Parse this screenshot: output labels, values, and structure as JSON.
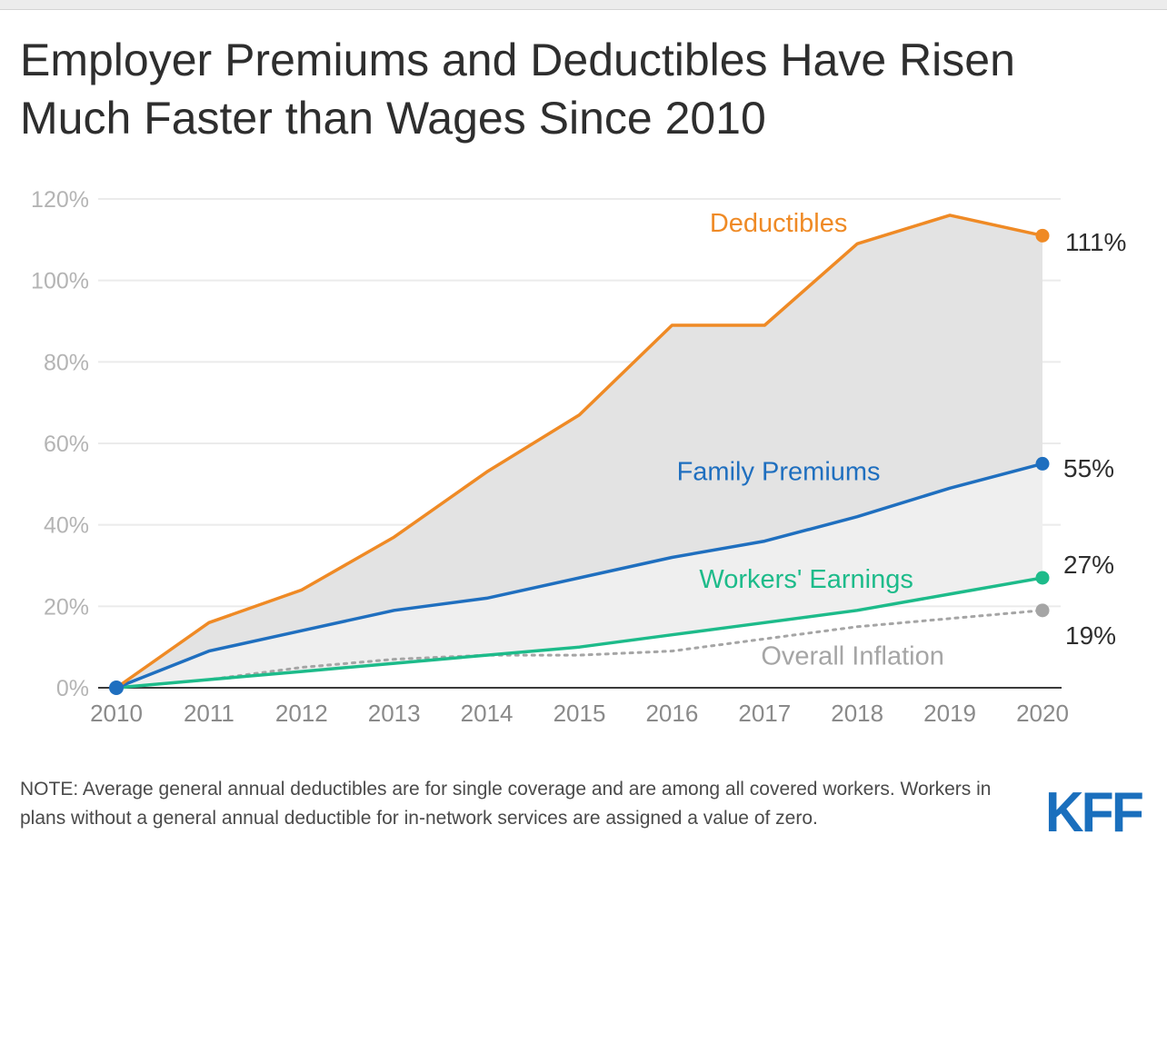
{
  "title_line1": "Employer Premiums and Deductibles Have Risen",
  "title_line2": "Much Faster than Wages Since 2010",
  "note": "NOTE: Average general annual deductibles are for single coverage and are among all covered workers. Workers in plans without a general annual deductible for in-network services are assigned a value of zero.",
  "logo": "KFF",
  "chart_data": {
    "type": "line",
    "x": [
      2010,
      2011,
      2012,
      2013,
      2014,
      2015,
      2016,
      2017,
      2018,
      2019,
      2020
    ],
    "xticks": [
      "2010",
      "2011",
      "2012",
      "2013",
      "2014",
      "2015",
      "2016",
      "2017",
      "2018",
      "2019",
      "2020"
    ],
    "ylim": [
      0,
      120
    ],
    "yticks": [
      "0%",
      "20%",
      "40%",
      "60%",
      "80%",
      "100%",
      "120%"
    ],
    "ytick_values": [
      0,
      20,
      40,
      60,
      80,
      100,
      120
    ],
    "series": [
      {
        "name": "Deductibles",
        "color": "#ef8a25",
        "dashed": false,
        "end_label": "111%",
        "values": [
          0,
          16,
          24,
          37,
          53,
          67,
          89,
          89,
          109,
          116,
          111
        ]
      },
      {
        "name": "Family Premiums",
        "color": "#1f6fbf",
        "dashed": false,
        "end_label": "55%",
        "values": [
          0,
          9,
          14,
          19,
          22,
          27,
          32,
          36,
          42,
          49,
          55
        ]
      },
      {
        "name": "Workers' Earnings",
        "color": "#1dbb8a",
        "dashed": false,
        "end_label": "27%",
        "values": [
          0,
          2,
          4,
          6,
          8,
          10,
          13,
          16,
          19,
          23,
          27
        ]
      },
      {
        "name": "Overall Inflation",
        "color": "#a5a5a5",
        "dashed": true,
        "end_label": "19%",
        "values": [
          0,
          2,
          5,
          7,
          8,
          8,
          9,
          12,
          15,
          17,
          19
        ]
      }
    ]
  }
}
